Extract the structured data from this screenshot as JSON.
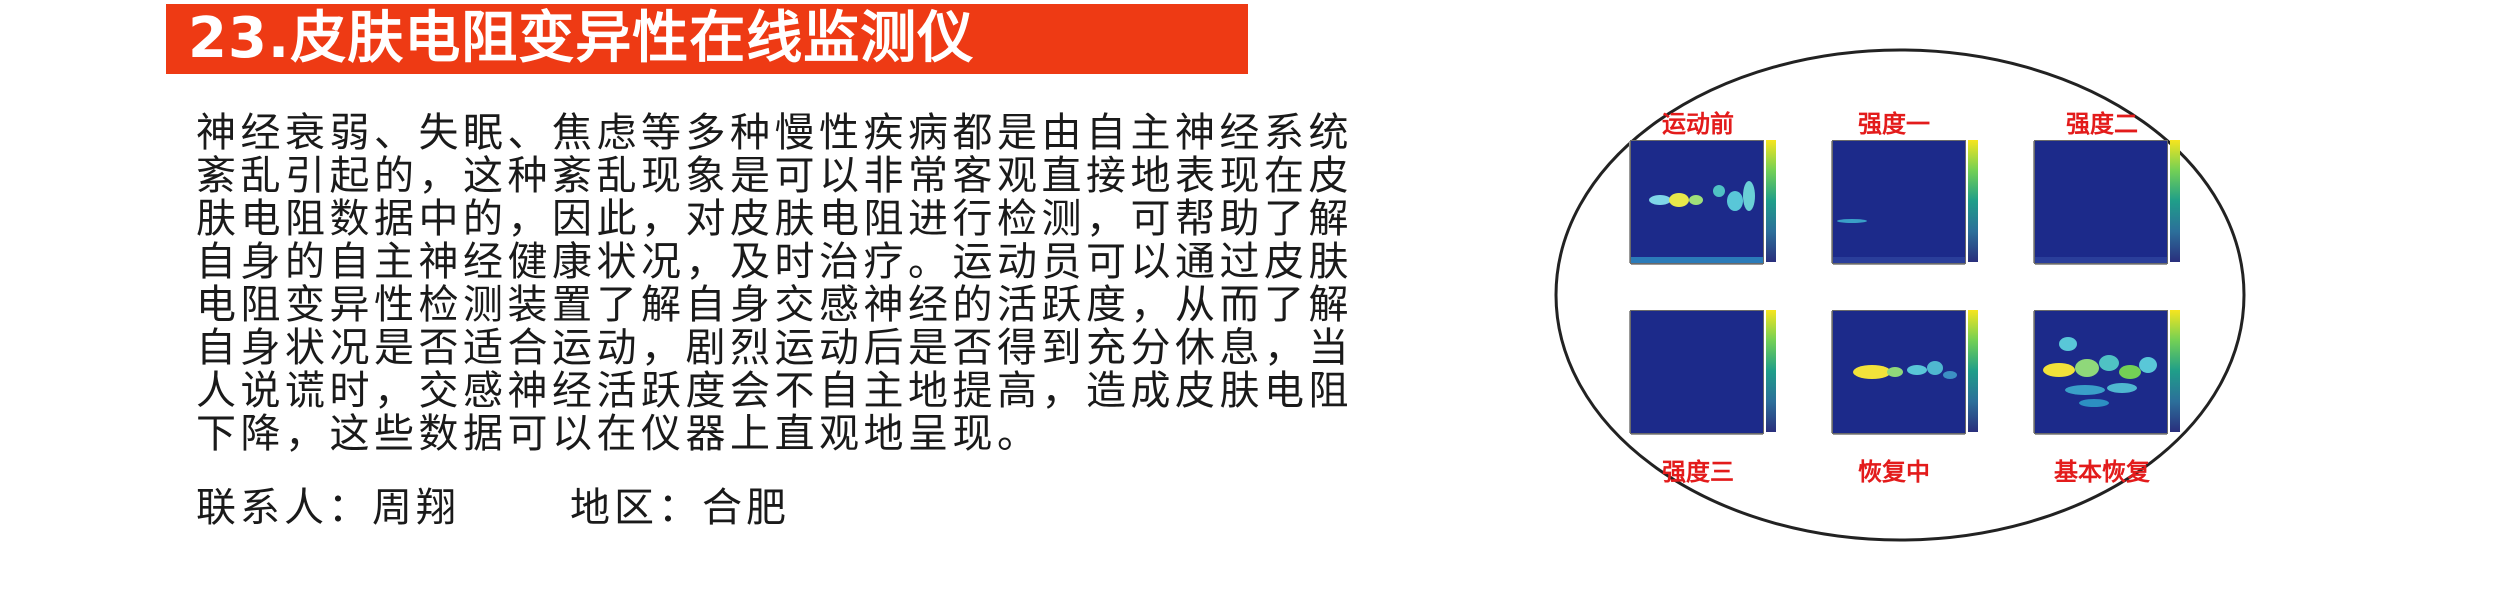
{
  "title": "23.皮肤电阻变异性在线监测仪",
  "body_lines": [
    "神经衰弱、失眠、焦虑等多种慢性疾病都是由自主神经系统",
    "紊乱引起的，这种紊乱现象是可以非常客观直接地表现在皮",
    "肤电阻数据中的，因此，对皮肤电阻进行检测，可帮助了解",
    "自身的自主神经健康状况，及时治疗。运动员可以通过皮肤",
    "电阻变异性检测装置了解自身交感神经的活跃度，从而了解",
    "自身状况是否适合运动，剧烈运动后是否得到充分休息，当",
    "人说谎时，交感神经活跃度会不自主地提高，造成皮肤电阻",
    "下降，这些数据可以在仪器上直观地呈现。"
  ],
  "contact": {
    "person": "联系人：周翔",
    "region": "地区：合肥"
  },
  "panels": {
    "top": [
      "运动前",
      "强度一",
      "强度二"
    ],
    "bottom": [
      "强度三",
      "恢复中",
      "基本恢复"
    ]
  },
  "colors": {
    "title_bg": "#ee3a14",
    "label_red": "#e31b1b",
    "plot_bg": "#1c2a8a"
  }
}
